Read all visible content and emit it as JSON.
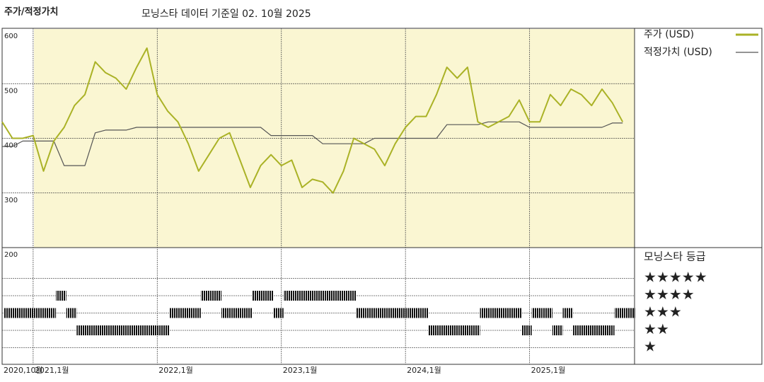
{
  "chart_data": {
    "type": "line",
    "title": "주가/적정가치",
    "subtitle": "모닝스타 데이터 기준일 02. 10월 2025",
    "x": [
      "2020-10",
      "2020-11",
      "2020-12",
      "2021-01",
      "2021-02",
      "2021-03",
      "2021-04",
      "2021-05",
      "2021-06",
      "2021-07",
      "2021-08",
      "2021-09",
      "2021-10",
      "2021-11",
      "2021-12",
      "2022-01",
      "2022-02",
      "2022-03",
      "2022-04",
      "2022-05",
      "2022-06",
      "2022-07",
      "2022-08",
      "2022-09",
      "2022-10",
      "2022-11",
      "2022-12",
      "2023-01",
      "2023-02",
      "2023-03",
      "2023-04",
      "2023-05",
      "2023-06",
      "2023-07",
      "2023-08",
      "2023-09",
      "2023-10",
      "2023-11",
      "2023-12",
      "2024-01",
      "2024-02",
      "2024-03",
      "2024-04",
      "2024-05",
      "2024-06",
      "2024-07",
      "2024-08",
      "2024-09",
      "2024-10",
      "2024-11",
      "2024-12",
      "2025-01",
      "2025-02",
      "2025-03",
      "2025-04",
      "2025-05",
      "2025-06",
      "2025-07",
      "2025-08",
      "2025-09",
      "2025-10"
    ],
    "xticks": [
      {
        "value": "2020-10",
        "label": "2020,10월"
      },
      {
        "value": "2021-01",
        "label": "2021,1월"
      },
      {
        "value": "2022-01",
        "label": "2022,1월"
      },
      {
        "value": "2023-01",
        "label": "2023,1월"
      },
      {
        "value": "2024-01",
        "label": "2024,1월"
      },
      {
        "value": "2025-01",
        "label": "2025,1월"
      }
    ],
    "ylim": [
      200,
      600
    ],
    "yticks": [
      200,
      300,
      400,
      500,
      600
    ],
    "grid": true,
    "series": [
      {
        "name": "주가 (USD)",
        "color": "#aab226",
        "values": [
          430,
          400,
          400,
          405,
          340,
          395,
          420,
          460,
          480,
          540,
          520,
          510,
          490,
          530,
          565,
          480,
          450,
          430,
          390,
          340,
          370,
          400,
          410,
          360,
          310,
          350,
          370,
          350,
          360,
          310,
          325,
          320,
          300,
          340,
          400,
          390,
          380,
          350,
          390,
          420,
          440,
          440,
          480,
          530,
          510,
          530,
          430,
          420,
          430,
          440,
          470,
          430,
          430,
          480,
          460,
          490,
          480,
          460,
          490,
          465,
          430
        ]
      },
      {
        "name": "적정가치 (USD)",
        "color": "#555555",
        "values": [
          385,
          385,
          395,
          395,
          395,
          395,
          350,
          350,
          350,
          410,
          415,
          415,
          415,
          420,
          420,
          420,
          420,
          420,
          420,
          420,
          420,
          420,
          420,
          420,
          420,
          420,
          405,
          405,
          405,
          405,
          405,
          390,
          390,
          390,
          390,
          390,
          400,
          400,
          400,
          400,
          400,
          400,
          400,
          425,
          425,
          425,
          425,
          430,
          430,
          430,
          430,
          420,
          420,
          420,
          420,
          420,
          420,
          420,
          420,
          428,
          428
        ]
      }
    ],
    "rating": {
      "title": "모닝스타 등급",
      "levels": [
        "★",
        "★★",
        "★★★",
        "★★★★",
        "★★★★★"
      ],
      "values": [
        3,
        3,
        3,
        3,
        3,
        4,
        3,
        2,
        2,
        2,
        2,
        2,
        2,
        2,
        2,
        2,
        3,
        3,
        3,
        4,
        4,
        3,
        3,
        3,
        4,
        4,
        3,
        4,
        4,
        4,
        4,
        4,
        4,
        4,
        3,
        3,
        3,
        3,
        3,
        3,
        3,
        2,
        2,
        2,
        2,
        2,
        3,
        3,
        3,
        3,
        2,
        3,
        3,
        2,
        3,
        2,
        2,
        2,
        2,
        3,
        3
      ]
    }
  }
}
